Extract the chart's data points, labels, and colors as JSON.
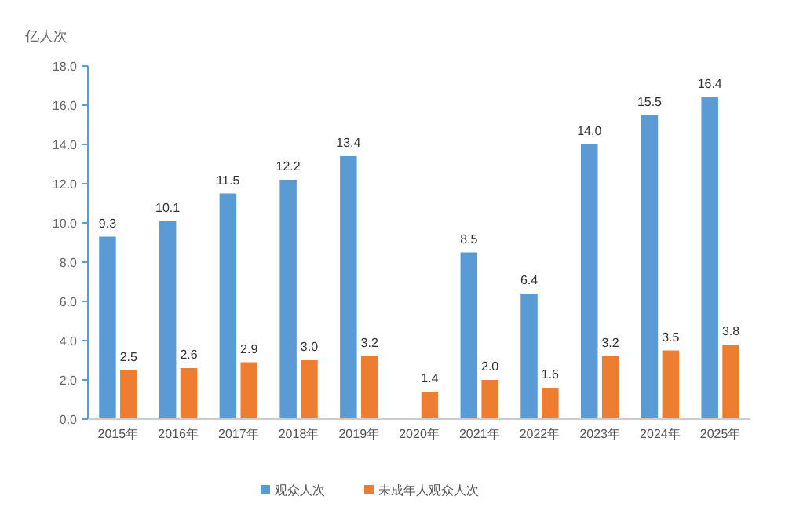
{
  "chart_data": {
    "type": "bar",
    "ylabel": "亿人次",
    "categories": [
      "2015年",
      "2016年",
      "2017年",
      "2018年",
      "2019年",
      "2020年",
      "2021年",
      "2022年",
      "2023年",
      "2024年",
      "2025年"
    ],
    "series": [
      {
        "name": "观众人次",
        "color": "#5b9bd5",
        "values": [
          9.3,
          10.1,
          11.5,
          12.2,
          13.4,
          null,
          8.5,
          6.4,
          14.0,
          15.5,
          16.4
        ],
        "value_labels": [
          "9.3",
          "10.1",
          "11.5",
          "12.2",
          "13.4",
          null,
          "8.5",
          "6.4",
          "14.0",
          "15.5",
          "16.4"
        ]
      },
      {
        "name": "未成年人观众人次",
        "color": "#ed7d31",
        "values": [
          2.5,
          2.6,
          2.9,
          3.0,
          3.2,
          1.4,
          2.0,
          1.6,
          3.2,
          3.5,
          3.8
        ],
        "value_labels": [
          "2.5",
          "2.6",
          "2.9",
          "3.0",
          "3.2",
          "1.4",
          "2.0",
          "1.6",
          "3.2",
          "3.5",
          "3.8"
        ]
      }
    ],
    "ylim": [
      0,
      18
    ],
    "yticks": [
      {
        "value": 0,
        "label": "0.0"
      },
      {
        "value": 2,
        "label": "2.0"
      },
      {
        "value": 4,
        "label": "4.0"
      },
      {
        "value": 6,
        "label": "6.0"
      },
      {
        "value": 8,
        "label": "8.0"
      },
      {
        "value": 10,
        "label": "10.0"
      },
      {
        "value": 12,
        "label": "12.0"
      },
      {
        "value": 14,
        "label": "14.0"
      },
      {
        "value": 16,
        "label": "16.0"
      },
      {
        "value": 18,
        "label": "18.0"
      }
    ],
    "grid": false,
    "legend": "bottom"
  }
}
